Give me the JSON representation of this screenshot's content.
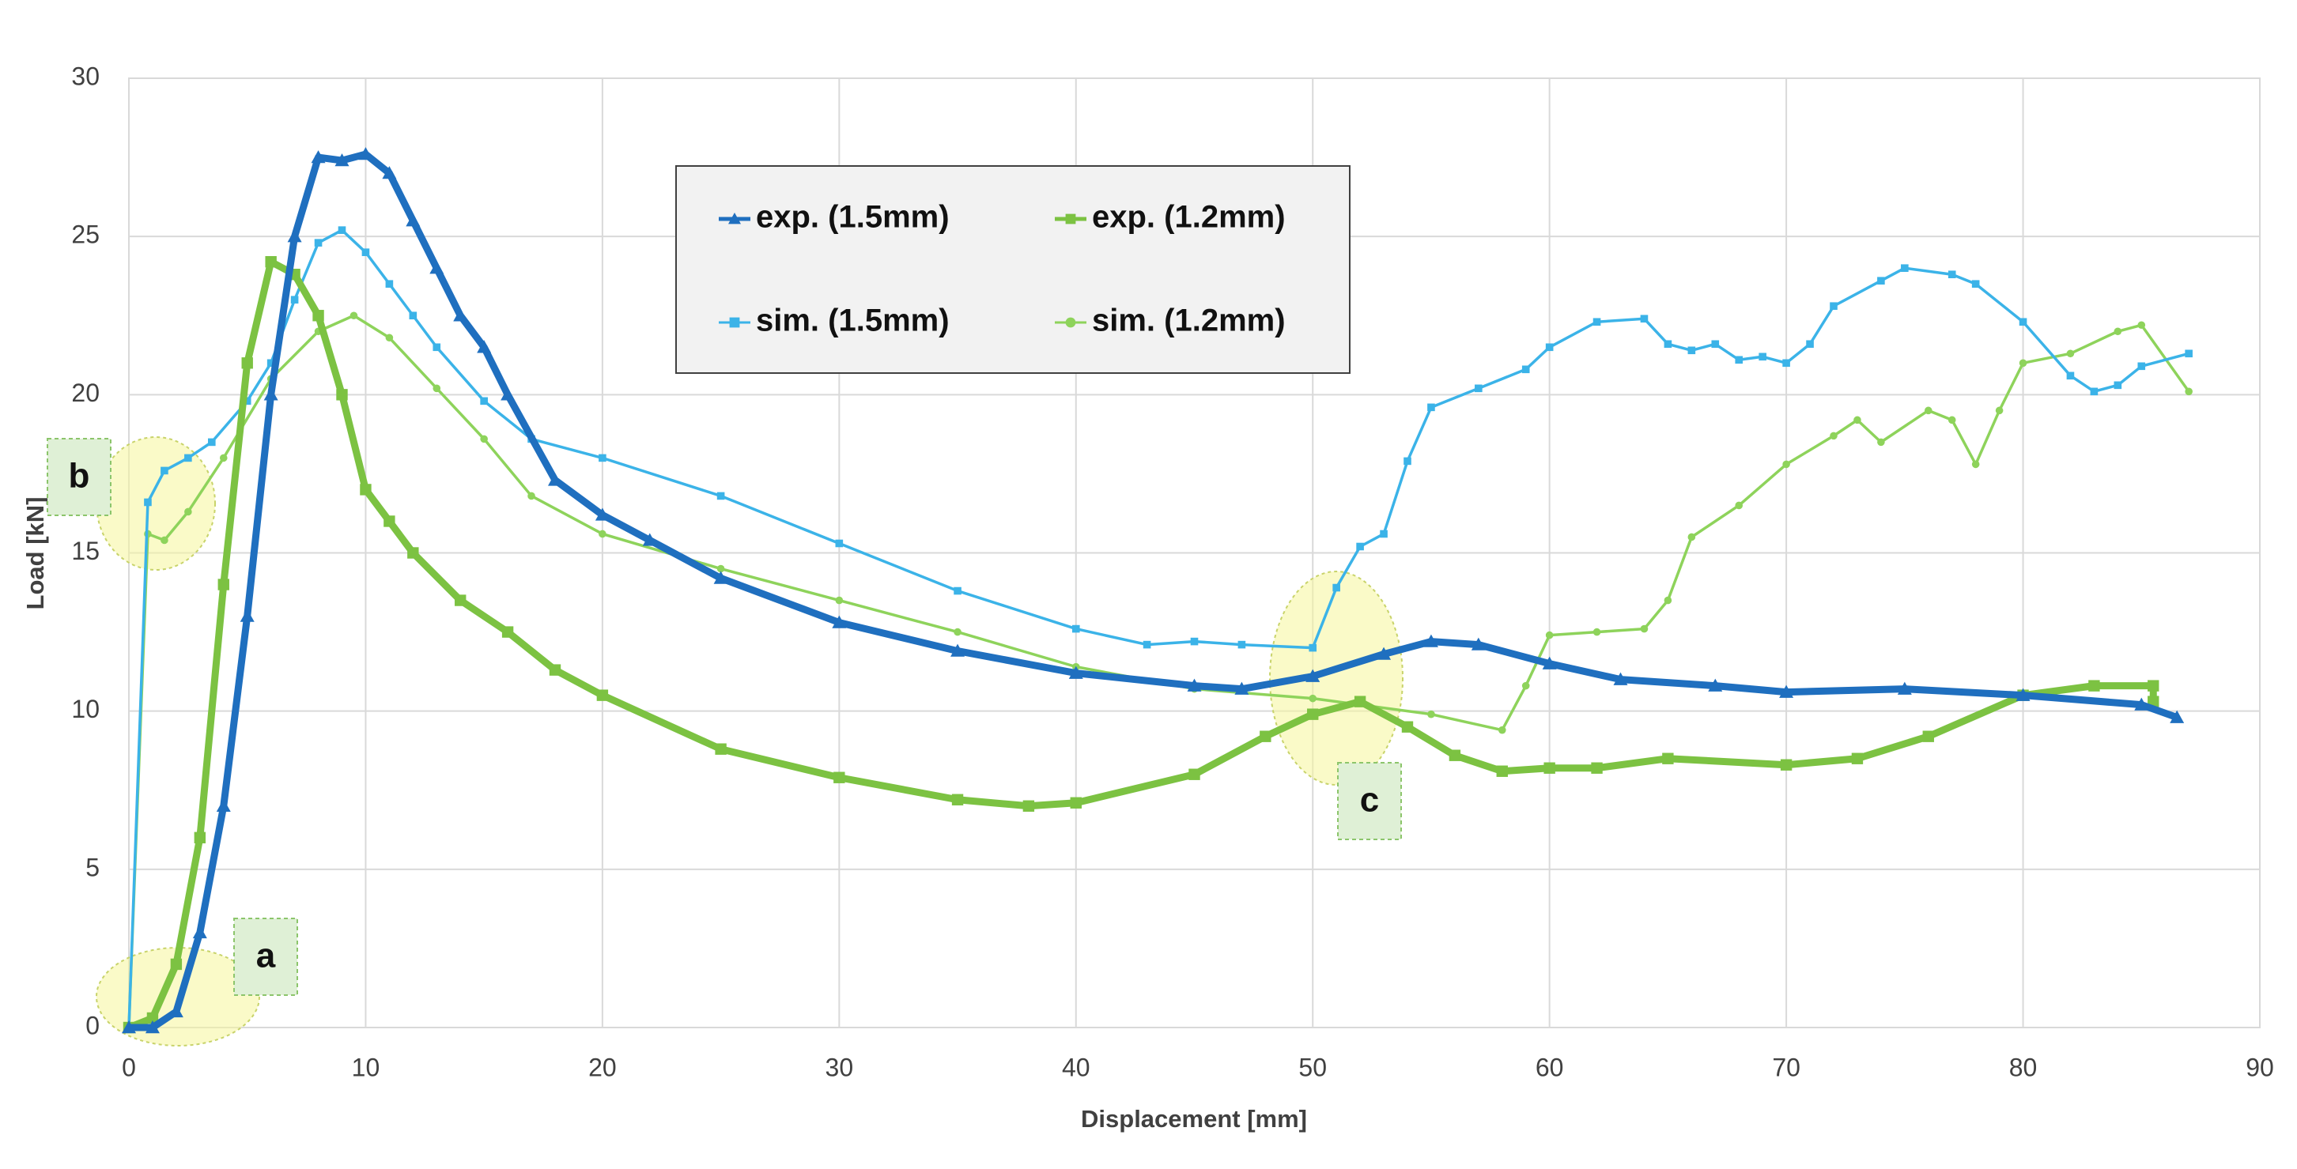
{
  "chart_data": {
    "type": "line",
    "x_label": "Displacement [mm]",
    "y_label": "Load  [kN]",
    "xlim": [
      0,
      90
    ],
    "xticks": [
      0,
      10,
      20,
      30,
      40,
      50,
      60,
      70,
      80,
      90
    ],
    "ylim": [
      0,
      30
    ],
    "yticks": [
      0,
      5,
      10,
      15,
      20,
      25,
      30
    ],
    "grid": true,
    "legend": "top-center",
    "annotations": [
      "a",
      "b",
      "c"
    ],
    "series": [
      {
        "name": "exp. (1.5mm)",
        "color": "#1f6fbf",
        "marker": "triangle",
        "x": [
          0,
          1,
          2,
          3,
          4,
          5,
          6,
          7,
          8,
          9,
          10,
          11,
          12,
          13,
          14,
          15,
          16,
          18,
          20,
          22,
          25,
          30,
          35,
          40,
          45,
          47,
          50,
          53,
          55,
          57,
          60,
          63,
          67,
          70,
          75,
          80,
          85,
          86.5
        ],
        "values": [
          0,
          0,
          0.5,
          3,
          7,
          13,
          20,
          25,
          27.5,
          27.4,
          27.6,
          27,
          25.5,
          24,
          22.5,
          21.5,
          20,
          17.3,
          16.2,
          15.4,
          14.2,
          12.8,
          11.9,
          11.2,
          10.8,
          10.7,
          11.1,
          11.8,
          12.2,
          12.1,
          11.5,
          11,
          10.8,
          10.6,
          10.7,
          10.5,
          10.2,
          9.8
        ]
      },
      {
        "name": "exp. (1.2mm)",
        "color": "#7cc242",
        "marker": "square",
        "x": [
          0,
          1,
          2,
          3,
          4,
          5,
          6,
          7,
          8,
          9,
          10,
          11,
          12,
          14,
          16,
          18,
          20,
          25,
          30,
          35,
          38,
          40,
          45,
          48,
          50,
          52,
          54,
          56,
          58,
          60,
          62,
          65,
          70,
          73,
          76,
          80,
          83,
          85.5,
          85.5
        ],
        "values": [
          0,
          0.3,
          2,
          6,
          14,
          21,
          24.2,
          23.8,
          22.5,
          20,
          17,
          16,
          15,
          13.5,
          12.5,
          11.3,
          10.5,
          8.8,
          7.9,
          7.2,
          7,
          7.1,
          8,
          9.2,
          9.9,
          10.3,
          9.5,
          8.6,
          8.1,
          8.2,
          8.2,
          8.5,
          8.3,
          8.5,
          9.2,
          10.5,
          10.8,
          10.8,
          10.3
        ]
      },
      {
        "name": "sim. (1.5mm)",
        "color": "#3bb3e8",
        "marker": "square",
        "x": [
          0,
          0.8,
          1.5,
          2.5,
          3.5,
          5,
          6,
          7,
          8,
          9,
          10,
          11,
          12,
          13,
          15,
          17,
          20,
          25,
          30,
          35,
          40,
          43,
          45,
          47,
          50,
          51,
          52,
          53,
          54,
          55,
          57,
          59,
          60,
          62,
          64,
          65,
          66,
          67,
          68,
          69,
          70,
          71,
          72,
          74,
          75,
          77,
          78,
          80,
          82,
          83,
          84,
          85,
          87
        ],
        "values": [
          0,
          16.6,
          17.6,
          18,
          18.5,
          19.8,
          21,
          23,
          24.8,
          25.2,
          24.5,
          23.5,
          22.5,
          21.5,
          19.8,
          18.6,
          18,
          16.8,
          15.3,
          13.8,
          12.6,
          12.1,
          12.2,
          12.1,
          12,
          13.9,
          15.2,
          15.6,
          17.9,
          19.6,
          20.2,
          20.8,
          21.5,
          22.3,
          22.4,
          21.6,
          21.4,
          21.6,
          21.1,
          21.2,
          21,
          21.6,
          22.8,
          23.6,
          24,
          23.8,
          23.5,
          22.3,
          20.6,
          20.1,
          20.3,
          20.9,
          21.3
        ]
      },
      {
        "name": "sim. (1.2mm)",
        "color": "#8ed35b",
        "marker": "circle",
        "x": [
          0,
          0.8,
          1.5,
          2.5,
          4,
          6,
          8,
          9.5,
          11,
          13,
          15,
          17,
          20,
          25,
          30,
          35,
          40,
          45,
          50,
          55,
          58,
          59,
          60,
          62,
          64,
          65,
          66,
          68,
          70,
          72,
          73,
          74,
          76,
          77,
          78,
          79,
          80,
          82,
          84,
          85,
          87
        ],
        "values": [
          0,
          15.6,
          15.4,
          16.3,
          18,
          20.5,
          22,
          22.5,
          21.8,
          20.2,
          18.6,
          16.8,
          15.6,
          14.5,
          13.5,
          12.5,
          11.4,
          10.7,
          10.4,
          9.9,
          9.4,
          10.8,
          12.4,
          12.5,
          12.6,
          13.5,
          15.5,
          16.5,
          17.8,
          18.7,
          19.2,
          18.5,
          19.5,
          19.2,
          17.8,
          19.5,
          21,
          21.3,
          22,
          22.2,
          20.1
        ]
      }
    ]
  }
}
